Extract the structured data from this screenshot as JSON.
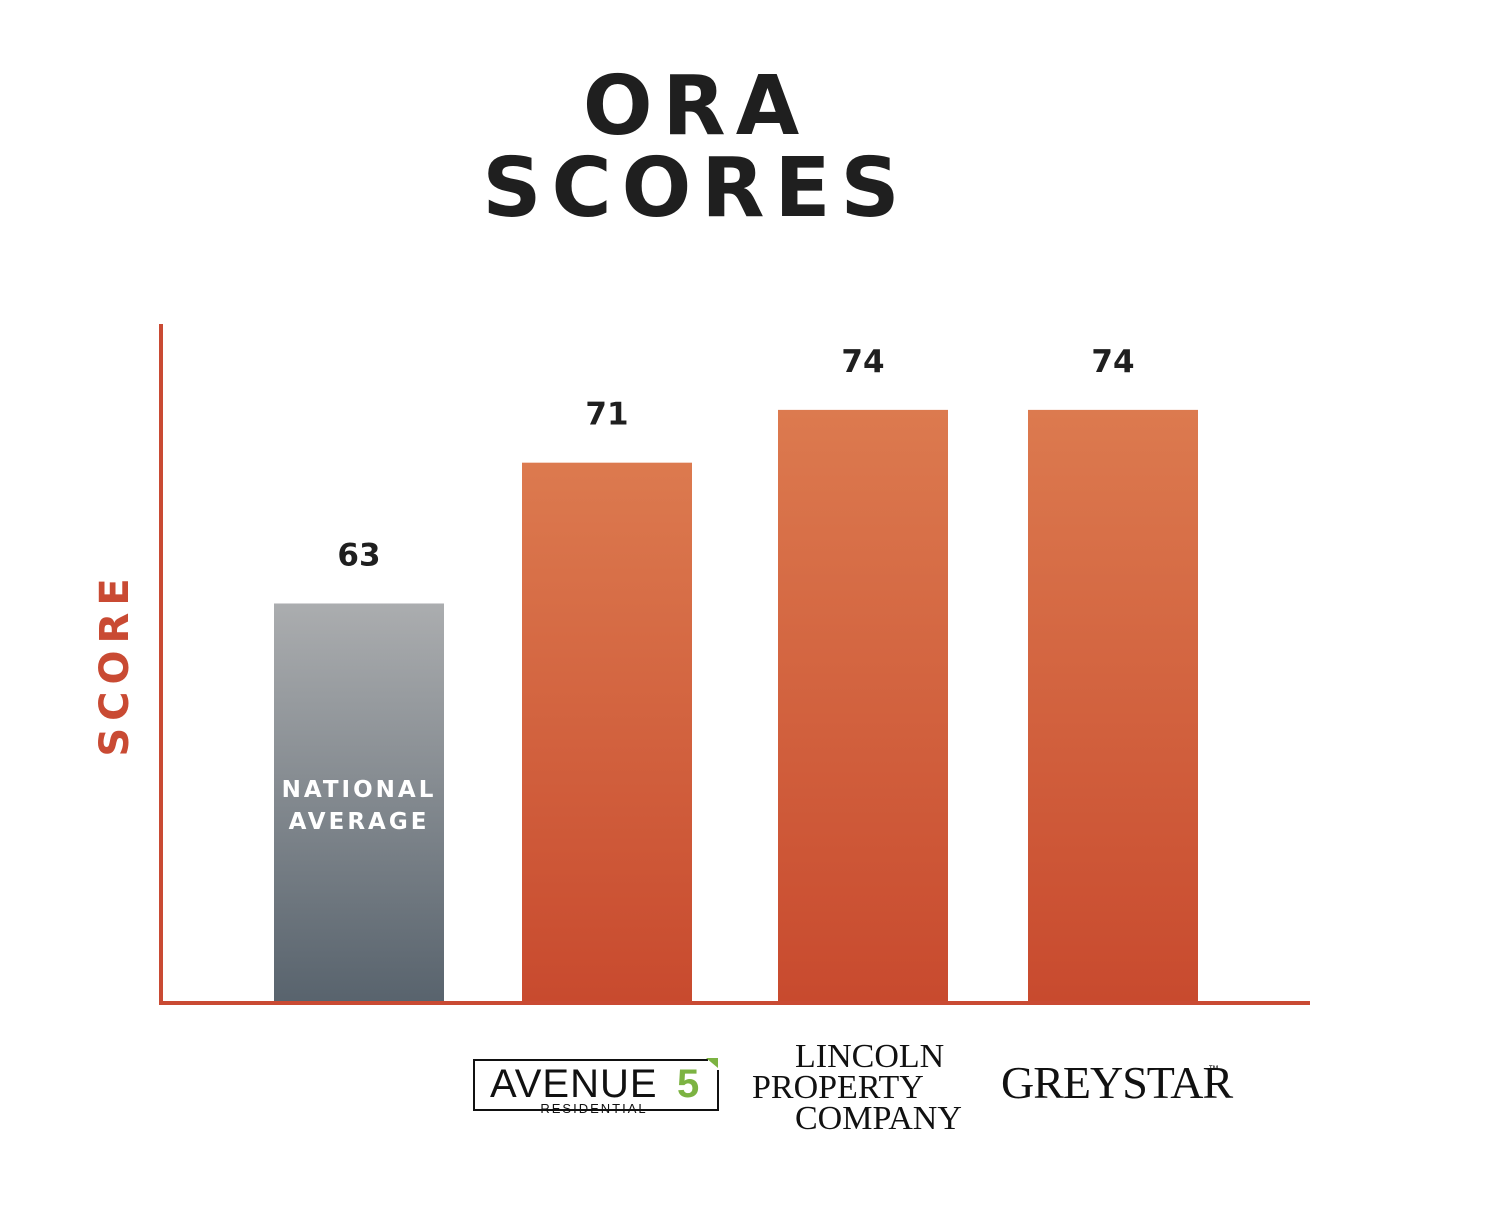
{
  "title_lines": [
    "ORA",
    "SCORES"
  ],
  "chart_data": {
    "type": "bar",
    "title": "ORA SCORES",
    "ylabel": "SCORE",
    "xlabel": "",
    "ylim": [
      0,
      80
    ],
    "grid": false,
    "categories": [
      "NATIONAL AVERAGE",
      "AVENUE5 RESIDENTIAL",
      "LINCOLN PROPERTY COMPANY",
      "GREYSTAR"
    ],
    "values": [
      63,
      71,
      74,
      74
    ],
    "value_labels": [
      "63",
      "71",
      "74",
      "74"
    ],
    "bar_inner_label": [
      "NATIONAL",
      "AVERAGE"
    ],
    "colors": {
      "average_top": "#abadaf",
      "average_bottom": "#58636d",
      "company_top": "#dc7a4f",
      "company_bottom": "#c84a2e",
      "axis": "#c94a33"
    }
  },
  "logos": {
    "avenue5": {
      "name": "AVENUE",
      "number": "5",
      "sub": "RESIDENTIAL",
      "accent": "#7cb342"
    },
    "lincoln": {
      "line1": "LINCOLN",
      "line2": "PROPERTY",
      "line3": "COMPANY"
    },
    "greystar": {
      "name": "GREYSTAR",
      "tm": "™"
    }
  }
}
